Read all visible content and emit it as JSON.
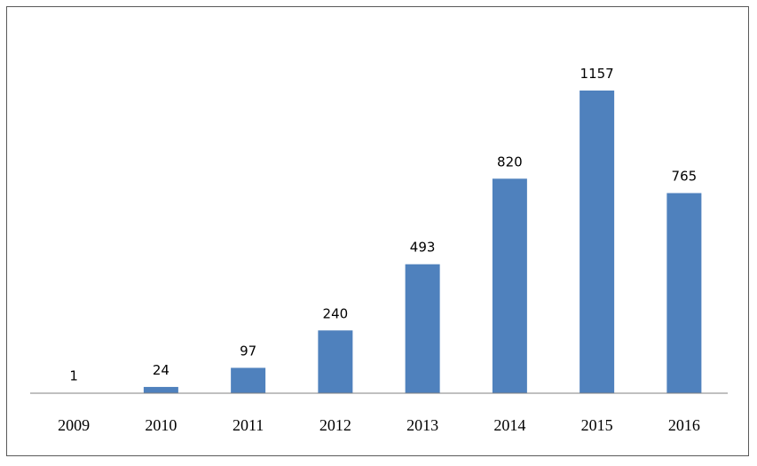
{
  "chart_data": {
    "type": "bar",
    "title": "",
    "xlabel": "",
    "ylabel": "",
    "categories": [
      "2009",
      "2010",
      "2011",
      "2012",
      "2013",
      "2014",
      "2015",
      "2016"
    ],
    "series": [
      {
        "values": [
          1,
          24,
          97,
          240,
          493,
          820,
          1157,
          765
        ]
      }
    ],
    "data_labels": [
      "1",
      "24",
      "97",
      "240",
      "493",
      "820",
      "1157",
      "765"
    ],
    "ylim": [
      0,
      1300
    ],
    "grid": false,
    "legend": "none",
    "bar_color": "#4F81BD",
    "axis_color": "#808080",
    "frame_color": "#595959"
  }
}
